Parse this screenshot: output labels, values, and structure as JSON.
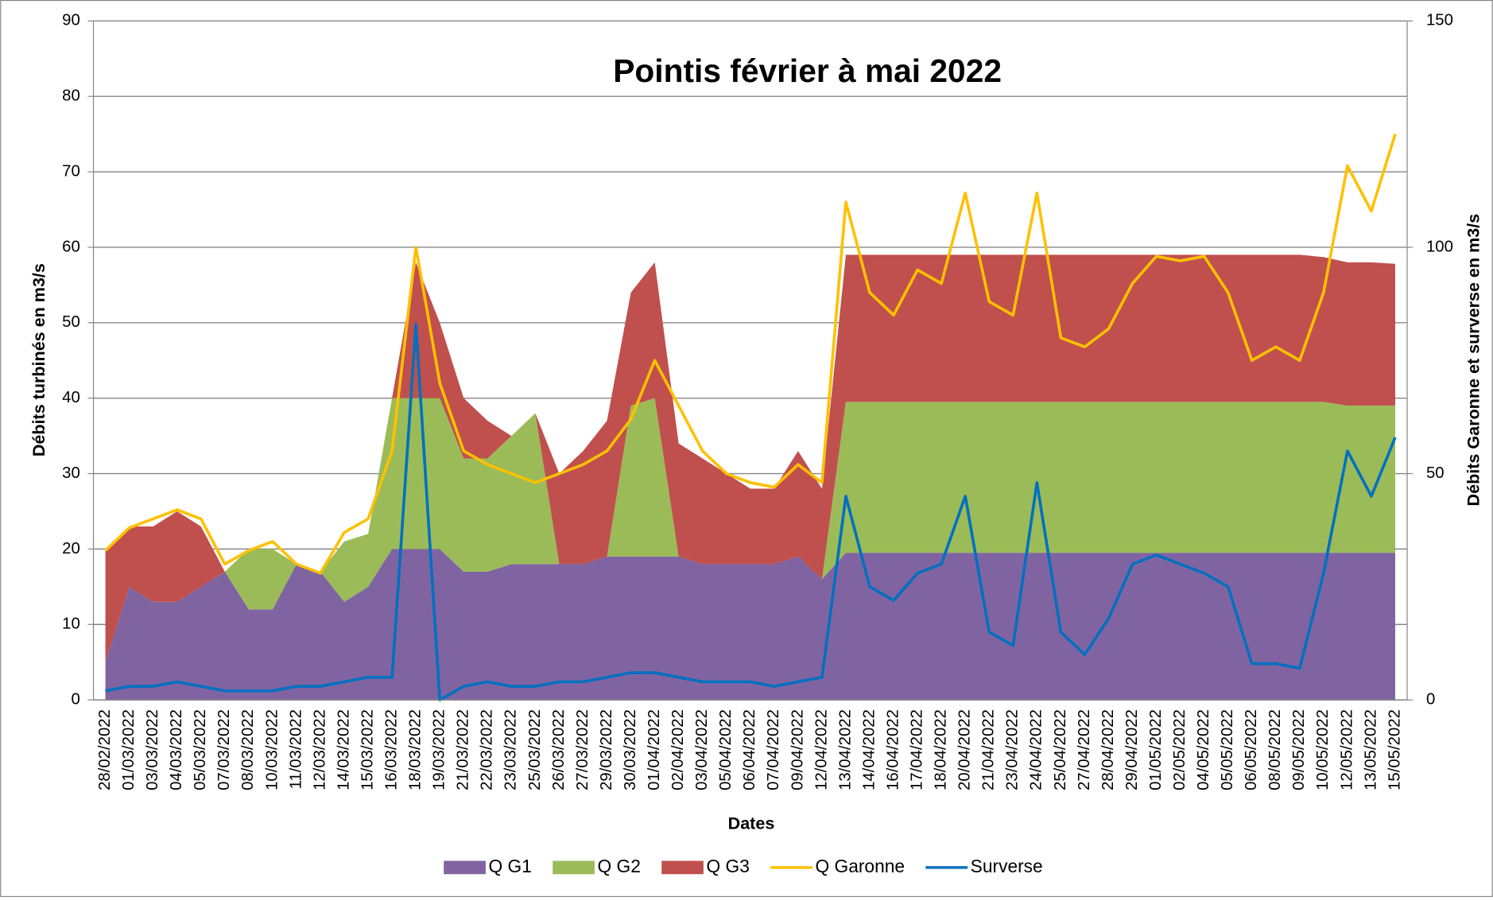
{
  "chart_data": {
    "type": "stacked-area-line",
    "title": "Pointis février à mai 2022",
    "x_label": "Dates",
    "y_label": "Débits turbinés en m3/s",
    "y2_label": "Débits Garonne et surverse en m3/s",
    "categories": [
      "28/02/2022",
      "01/03/2022",
      "03/03/2022",
      "04/03/2022",
      "05/03/2022",
      "07/03/2022",
      "08/03/2022",
      "10/03/2022",
      "11/03/2022",
      "12/03/2022",
      "14/03/2022",
      "15/03/2022",
      "16/03/2022",
      "18/03/2022",
      "19/03/2022",
      "21/03/2022",
      "22/03/2022",
      "23/03/2022",
      "25/03/2022",
      "26/03/2022",
      "27/03/2022",
      "29/03/2022",
      "30/03/2022",
      "01/04/2022",
      "02/04/2022",
      "03/04/2022",
      "05/04/2022",
      "06/04/2022",
      "07/04/2022",
      "09/04/2022",
      "12/04/2022",
      "13/04/2022",
      "14/04/2022",
      "16/04/2022",
      "17/04/2022",
      "18/04/2022",
      "20/04/2022",
      "21/04/2022",
      "23/04/2022",
      "24/04/2022",
      "25/04/2022",
      "27/04/2022",
      "28/04/2022",
      "29/04/2022",
      "01/05/2022",
      "02/05/2022",
      "04/05/2022",
      "05/05/2022",
      "06/05/2022",
      "08/05/2022",
      "09/05/2022",
      "10/05/2022",
      "12/05/2022",
      "13/05/2022",
      "15/05/2022"
    ],
    "series": [
      {
        "name": "Q G1",
        "color": "#8064a2",
        "kind": "area",
        "values": [
          5,
          15,
          13,
          13,
          15,
          17,
          12,
          12,
          18,
          17,
          13,
          15,
          20,
          20,
          20,
          17,
          17,
          18,
          18,
          18,
          18,
          19,
          19,
          19,
          19,
          18,
          18,
          18,
          18,
          19,
          16,
          19.5,
          19.5,
          19.5,
          19.5,
          19.5,
          19.5,
          19.5,
          19.5,
          19.5,
          19.5,
          19.5,
          19.5,
          19.5,
          19.5,
          19.5,
          19.5,
          19.5,
          19.5,
          19.5,
          19.5,
          19.5,
          19.5,
          19.5,
          19.5
        ]
      },
      {
        "name": "Q G2",
        "color": "#9bbb59",
        "kind": "area",
        "values": [
          0,
          0,
          0,
          0,
          0,
          0,
          8,
          8,
          0,
          0,
          8,
          7,
          20,
          20,
          20,
          15,
          15,
          17,
          20,
          0,
          0,
          0,
          20,
          21,
          0,
          0,
          0,
          0,
          0,
          0,
          0,
          20,
          20,
          20,
          20,
          20,
          20,
          20,
          20,
          20,
          20,
          20,
          20,
          20,
          20,
          20,
          20,
          20,
          20,
          20,
          20,
          20,
          19.5,
          19.5,
          19.5
        ]
      },
      {
        "name": "Q G3",
        "color": "#c0504d",
        "kind": "area",
        "values": [
          15,
          8,
          10,
          12,
          8,
          0,
          0,
          0,
          0,
          0,
          0,
          0,
          0,
          18,
          10,
          8,
          5,
          0,
          0,
          12,
          15,
          18,
          15,
          18,
          15,
          14,
          12,
          10,
          10,
          14,
          12,
          19.5,
          19.5,
          19.5,
          19.5,
          19.5,
          19.5,
          19.5,
          19.5,
          19.5,
          19.5,
          19.5,
          19.5,
          19.5,
          19.5,
          19.5,
          19.5,
          19.5,
          19.5,
          19.5,
          19.5,
          19.2,
          19,
          19,
          18.8
        ]
      },
      {
        "name": "Q Garonne",
        "color": "#ffc000",
        "kind": "line",
        "axis": "y2",
        "values": [
          33,
          38,
          40,
          42,
          40,
          30,
          33,
          35,
          30,
          28,
          37,
          40,
          55,
          100,
          70,
          55,
          52,
          50,
          48,
          50,
          52,
          55,
          62,
          75,
          65,
          55,
          50,
          48,
          47,
          52,
          48,
          110,
          90,
          85,
          95,
          92,
          112,
          88,
          85,
          112,
          80,
          78,
          82,
          92,
          98,
          97,
          98,
          90,
          75,
          78,
          75,
          90,
          118,
          108,
          125
        ]
      },
      {
        "name": "Surverse",
        "color": "#0070c0",
        "kind": "line",
        "axis": "y2",
        "values": [
          2,
          3,
          3,
          4,
          3,
          2,
          2,
          2,
          3,
          3,
          4,
          5,
          5,
          83,
          0,
          3,
          4,
          3,
          3,
          4,
          4,
          5,
          6,
          6,
          5,
          4,
          4,
          4,
          3,
          4,
          5,
          45,
          25,
          22,
          28,
          30,
          45,
          15,
          12,
          48,
          15,
          10,
          18,
          30,
          32,
          30,
          28,
          25,
          8,
          8,
          7,
          28,
          55,
          45,
          58
        ]
      }
    ],
    "ylim": [
      0,
      90
    ],
    "yticks": [
      0,
      10,
      20,
      30,
      40,
      50,
      60,
      70,
      80,
      90
    ],
    "y2lim": [
      0,
      150
    ],
    "y2ticks": [
      0,
      50,
      100,
      150
    ],
    "grid": true,
    "legend": "bottom"
  }
}
